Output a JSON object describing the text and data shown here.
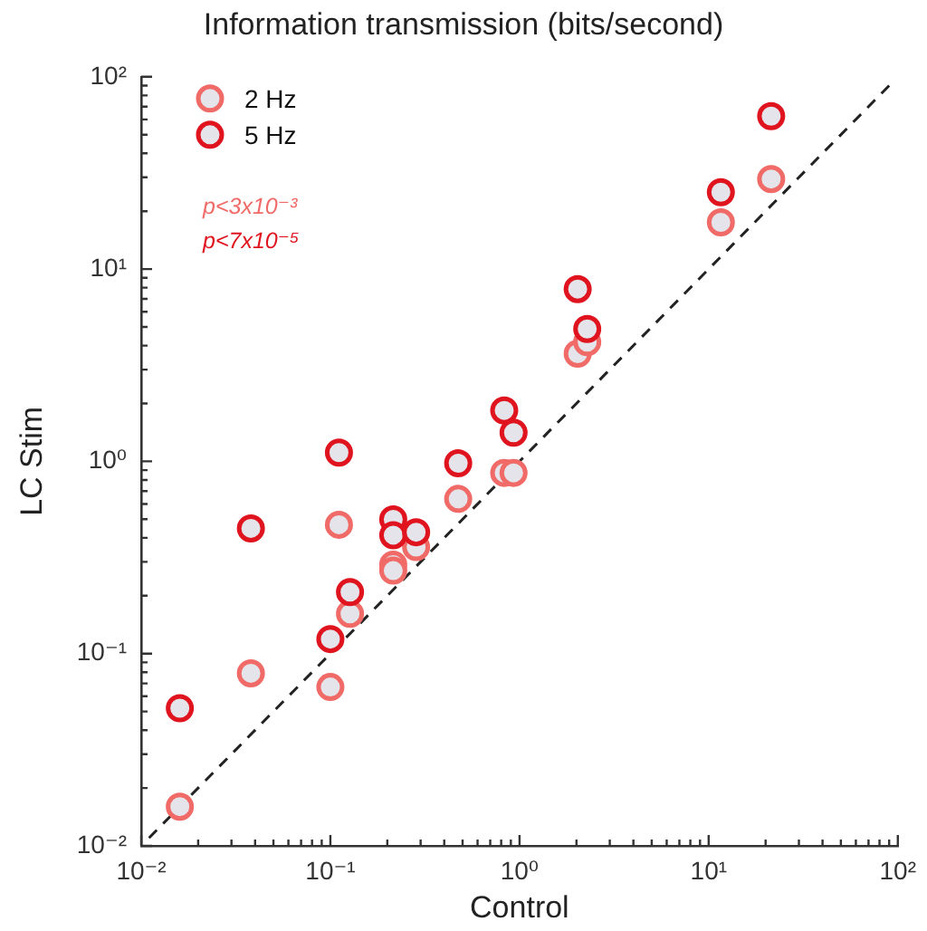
{
  "chart_data": {
    "type": "scatter",
    "title": "Information transmission (bits/second)",
    "xlabel": "Control",
    "ylabel": "LC Stim",
    "x": [
      0.016,
      0.038,
      0.1,
      0.127,
      0.111,
      0.215,
      0.215,
      0.284,
      0.474,
      0.83,
      0.93,
      2.03,
      2.28,
      11.6,
      21.4
    ],
    "series": [
      {
        "name": "2 Hz",
        "color": "#f06b68",
        "values": [
          0.016,
          0.079,
          0.067,
          0.161,
          0.468,
          0.29,
          0.27,
          0.358,
          0.638,
          0.871,
          0.871,
          3.63,
          4.17,
          17.5,
          29.4
        ]
      },
      {
        "name": "5 Hz",
        "color": "#e0141e",
        "values": [
          0.052,
          0.448,
          0.119,
          0.209,
          1.11,
          0.499,
          0.413,
          0.428,
          0.977,
          1.84,
          1.41,
          7.87,
          4.88,
          25.1,
          62.4
        ]
      },
      {
        "type": "line",
        "color": "#222222",
        "x": [
          0.011,
          90
        ],
        "values": [
          0.011,
          90
        ],
        "line_style": "dashed",
        "marker": "none"
      }
    ],
    "annotations": [
      "p<3x10⁻³",
      "p<7x10⁻⁵"
    ],
    "log": "xy",
    "marker": "circle",
    "legend": "top left",
    "xlim": [
      0.01,
      100
    ],
    "ylim": [
      0.01,
      100
    ],
    "xticks": [
      {
        "value": 0.01,
        "label": "10⁻²"
      },
      {
        "value": 0.02,
        "label": null
      },
      {
        "value": 0.03,
        "label": null
      },
      {
        "value": 0.04,
        "label": null
      },
      {
        "value": 0.05,
        "label": null
      },
      {
        "value": 0.06,
        "label": null
      },
      {
        "value": 0.07,
        "label": null
      },
      {
        "value": 0.08,
        "label": null
      },
      {
        "value": 0.09,
        "label": null
      },
      {
        "value": 0.1,
        "label": "10⁻¹"
      },
      {
        "value": 0.2,
        "label": null
      },
      {
        "value": 0.3,
        "label": null
      },
      {
        "value": 0.4,
        "label": null
      },
      {
        "value": 0.5,
        "label": null
      },
      {
        "value": 0.6,
        "label": null
      },
      {
        "value": 0.7,
        "label": null
      },
      {
        "value": 0.8,
        "label": null
      },
      {
        "value": 0.9,
        "label": null
      },
      {
        "value": 1,
        "label": "10⁰"
      },
      {
        "value": 2,
        "label": null
      },
      {
        "value": 3,
        "label": null
      },
      {
        "value": 4,
        "label": null
      },
      {
        "value": 5,
        "label": null
      },
      {
        "value": 6,
        "label": null
      },
      {
        "value": 7,
        "label": null
      },
      {
        "value": 8,
        "label": null
      },
      {
        "value": 9,
        "label": null
      },
      {
        "value": 10,
        "label": "10¹"
      },
      {
        "value": 20,
        "label": null
      },
      {
        "value": 30,
        "label": null
      },
      {
        "value": 40,
        "label": null
      },
      {
        "value": 50,
        "label": null
      },
      {
        "value": 60,
        "label": null
      },
      {
        "value": 70,
        "label": null
      },
      {
        "value": 80,
        "label": null
      },
      {
        "value": 90,
        "label": null
      },
      {
        "value": 100,
        "label": "10²"
      }
    ],
    "yticks": [
      {
        "value": 0.01,
        "label": "10⁻²"
      },
      {
        "value": 0.02,
        "label": null
      },
      {
        "value": 0.03,
        "label": null
      },
      {
        "value": 0.04,
        "label": null
      },
      {
        "value": 0.05,
        "label": null
      },
      {
        "value": 0.06,
        "label": null
      },
      {
        "value": 0.07,
        "label": null
      },
      {
        "value": 0.08,
        "label": null
      },
      {
        "value": 0.09,
        "label": null
      },
      {
        "value": 0.1,
        "label": "10⁻¹"
      },
      {
        "value": 0.2,
        "label": null
      },
      {
        "value": 0.3,
        "label": null
      },
      {
        "value": 0.4,
        "label": null
      },
      {
        "value": 0.5,
        "label": null
      },
      {
        "value": 0.6,
        "label": null
      },
      {
        "value": 0.7,
        "label": null
      },
      {
        "value": 0.8,
        "label": null
      },
      {
        "value": 0.9,
        "label": null
      },
      {
        "value": 1,
        "label": "10⁰"
      },
      {
        "value": 2,
        "label": null
      },
      {
        "value": 3,
        "label": null
      },
      {
        "value": 4,
        "label": null
      },
      {
        "value": 5,
        "label": null
      },
      {
        "value": 6,
        "label": null
      },
      {
        "value": 7,
        "label": null
      },
      {
        "value": 8,
        "label": null
      },
      {
        "value": 9,
        "label": null
      },
      {
        "value": 10,
        "label": "10¹"
      },
      {
        "value": 20,
        "label": null
      },
      {
        "value": 30,
        "label": null
      },
      {
        "value": 40,
        "label": null
      },
      {
        "value": 50,
        "label": null
      },
      {
        "value": 60,
        "label": null
      },
      {
        "value": 70,
        "label": null
      },
      {
        "value": 80,
        "label": null
      },
      {
        "value": 90,
        "label": null
      },
      {
        "value": 100,
        "label": "10²"
      }
    ]
  }
}
